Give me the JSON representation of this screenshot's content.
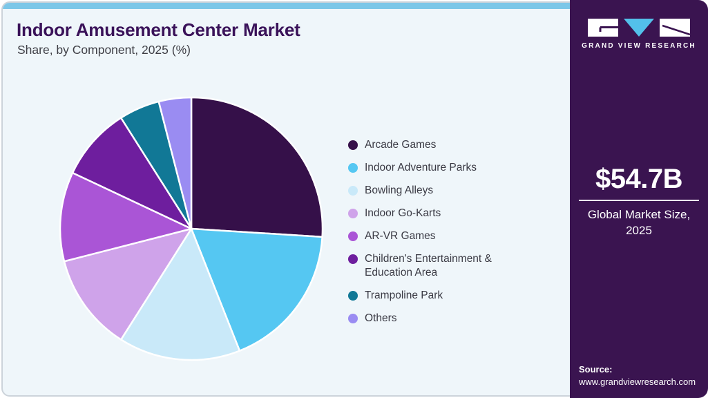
{
  "header": {
    "title": "Indoor Amusement Center Market",
    "subtitle": "Share, by Component, 2025 (%)"
  },
  "chart_data": {
    "type": "pie",
    "title": "Indoor Amusement Center Market Share, by Component, 2025 (%)",
    "unit": "percent",
    "legend_position": "right",
    "start_angle_deg": -90,
    "direction": "clockwise",
    "categories": [
      "Arcade Games",
      "Indoor Adventure Parks",
      "Bowling Alleys",
      "Indoor Go-Karts",
      "AR-VR Games",
      "Children's Entertainment & Education Area",
      "Trampoline Park",
      "Others"
    ],
    "values": [
      26,
      18,
      15,
      12,
      11,
      9,
      5,
      4
    ],
    "colors": [
      "#351049",
      "#55c7f2",
      "#c9e9f9",
      "#cfa3ea",
      "#aa55d6",
      "#6e1e9e",
      "#117896",
      "#9a8cf2"
    ]
  },
  "sidebar": {
    "logo": {
      "brand": "GRAND VIEW RESEARCH"
    },
    "market_size": {
      "value": "$54.7B",
      "label_line1": "Global Market Size,",
      "label_line2": "2025"
    },
    "source": {
      "label": "Source:",
      "url": "www.grandviewresearch.com"
    }
  },
  "theme": {
    "accent_bar": "#7cc7e8",
    "panel_bg": "#eff6fa",
    "sidebar_bg": "#3a1450",
    "title_color": "#3a1259",
    "logo_triangle": "#53c0ea",
    "slice_stroke": "#ffffff"
  }
}
